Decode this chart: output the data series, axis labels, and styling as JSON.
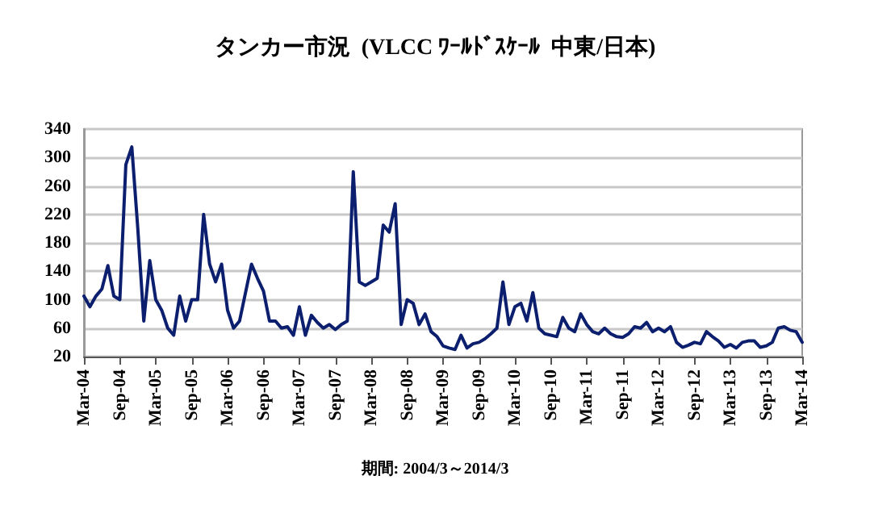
{
  "chart_data": {
    "type": "line",
    "title": "タンカー市況  (VLCC ﾜｰﾙﾄﾞｽｹｰﾙ  中東/日本)",
    "annotations": [
      "期間: 2004/3～2014/3"
    ],
    "categories": [
      "Mar-04",
      null,
      null,
      null,
      null,
      null,
      "Sep-04",
      null,
      null,
      null,
      null,
      null,
      "Mar-05",
      null,
      null,
      null,
      null,
      null,
      "Sep-05",
      null,
      null,
      null,
      null,
      null,
      "Mar-06",
      null,
      null,
      null,
      null,
      null,
      "Sep-06",
      null,
      null,
      null,
      null,
      null,
      "Mar-07",
      null,
      null,
      null,
      null,
      null,
      "Sep-07",
      null,
      null,
      null,
      null,
      null,
      "Mar-08",
      null,
      null,
      null,
      null,
      null,
      "Sep-08",
      null,
      null,
      null,
      null,
      null,
      "Mar-09",
      null,
      null,
      null,
      null,
      null,
      "Sep-09",
      null,
      null,
      null,
      null,
      null,
      "Mar-10",
      null,
      null,
      null,
      null,
      null,
      "Sep-10",
      null,
      null,
      null,
      null,
      null,
      "Mar-11",
      null,
      null,
      null,
      null,
      null,
      "Sep-11",
      null,
      null,
      null,
      null,
      null,
      "Mar-12",
      null,
      null,
      null,
      null,
      null,
      "Sep-12",
      null,
      null,
      null,
      null,
      null,
      "Mar-13",
      null,
      null,
      null,
      null,
      null,
      "Sep-13",
      null,
      null,
      null,
      null,
      null,
      "Mar-14"
    ],
    "series": [
      {
        "color": "#0c1f6e",
        "values": [
          105,
          90,
          105,
          115,
          148,
          105,
          100,
          290,
          315,
          200,
          70,
          155,
          100,
          85,
          60,
          50,
          105,
          70,
          100,
          100,
          220,
          150,
          125,
          150,
          85,
          60,
          70,
          110,
          150,
          130,
          112,
          70,
          70,
          60,
          62,
          50,
          90,
          50,
          78,
          68,
          60,
          65,
          58,
          65,
          70,
          280,
          125,
          120,
          125,
          130,
          205,
          195,
          235,
          65,
          100,
          95,
          65,
          80,
          55,
          48,
          35,
          32,
          30,
          50,
          32,
          38,
          40,
          45,
          52,
          60,
          125,
          65,
          90,
          95,
          70,
          110,
          60,
          52,
          50,
          48,
          75,
          60,
          55,
          80,
          65,
          55,
          52,
          60,
          52,
          48,
          47,
          52,
          62,
          60,
          68,
          55,
          60,
          55,
          62,
          40,
          33,
          36,
          40,
          38,
          55,
          48,
          42,
          33,
          37,
          32,
          40,
          42,
          42,
          33,
          35,
          40,
          60,
          62,
          57,
          55,
          40
        ]
      }
    ],
    "ylim": [
      20,
      340
    ],
    "yticks": [
      20,
      60,
      100,
      140,
      180,
      220,
      260,
      300,
      340
    ],
    "grid": "y",
    "marker": "none",
    "line_style": "solid"
  }
}
